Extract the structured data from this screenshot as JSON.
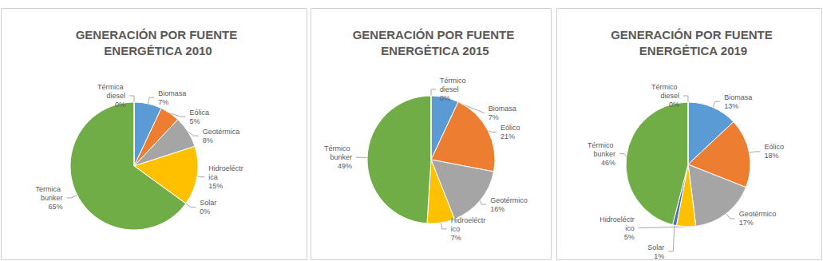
{
  "chart_data": [
    {
      "type": "pie",
      "title": "GENERACIÓN POR FUENTE ENERGÉTICA 2010",
      "categories": [
        "Biomasa",
        "Eólica",
        "Geotérmica",
        "Hidroeléctrica",
        "Solar",
        "Termica bunker",
        "Térmica diesel"
      ],
      "values": [
        7,
        5,
        8,
        15,
        0,
        65,
        0
      ],
      "value_labels": [
        "7%",
        "5%",
        "8%",
        "15%",
        "0%",
        "65%",
        "0%"
      ],
      "colors": [
        "#5b9bd5",
        "#ed7d31",
        "#a5a5a5",
        "#ffc000",
        "#4472c4",
        "#70ad47",
        "#255e91"
      ],
      "data_labels": true
    },
    {
      "type": "pie",
      "title": "GENERACIÓN POR FUENTE ENERGÉTICA 2015",
      "categories": [
        "Biomasa",
        "Eólico",
        "Geotérmico",
        "Hidroeléctrico",
        "Térmico bunker",
        "Térmico diesel"
      ],
      "values": [
        7,
        21,
        16,
        7,
        49,
        0
      ],
      "value_labels": [
        "7%",
        "21%",
        "16%",
        "7%",
        "49%",
        "0%"
      ],
      "colors": [
        "#5b9bd5",
        "#ed7d31",
        "#a5a5a5",
        "#ffc000",
        "#70ad47",
        "#255e91"
      ],
      "data_labels": true
    },
    {
      "type": "pie",
      "title": "GENERACIÓN POR FUENTE ENERGÉTICA 2019",
      "categories": [
        "Biomasa",
        "Eólico",
        "Geotérmico",
        "Hidroeléctrico",
        "Solar",
        "Térmico bunker",
        "Térmico diesel"
      ],
      "values": [
        13,
        18,
        17,
        5,
        1,
        46,
        0
      ],
      "value_labels": [
        "13%",
        "18%",
        "17%",
        "5%",
        "1%",
        "46%",
        "0%"
      ],
      "colors": [
        "#5b9bd5",
        "#ed7d31",
        "#a5a5a5",
        "#ffc000",
        "#4472c4",
        "#70ad47",
        "#255e91"
      ],
      "data_labels": true
    }
  ]
}
